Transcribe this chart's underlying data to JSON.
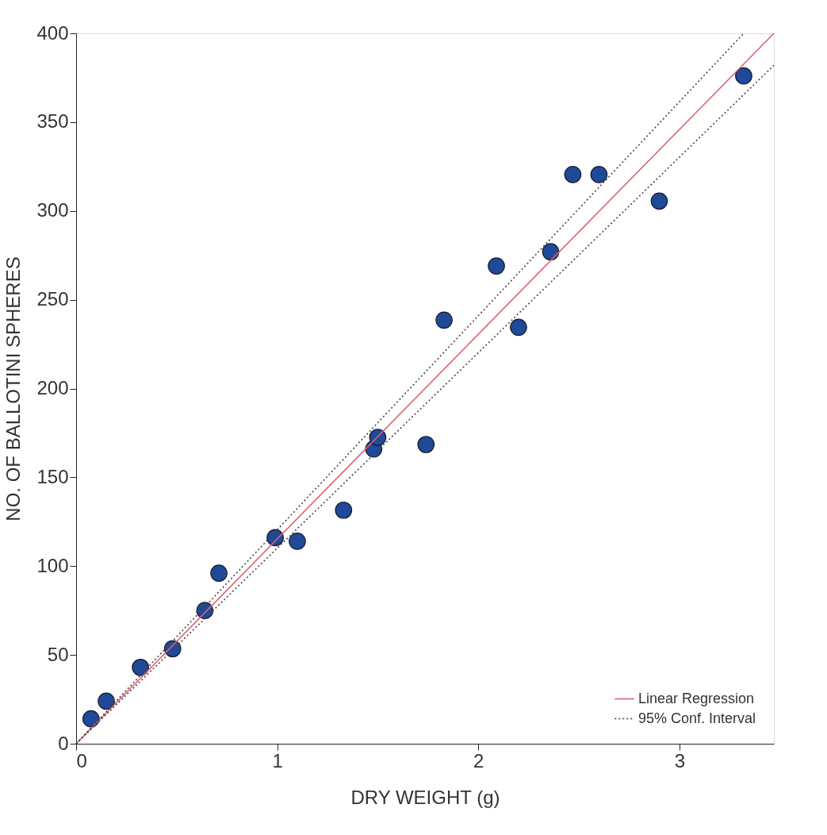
{
  "chart_data": {
    "type": "scatter",
    "xlabel": "DRY WEIGHT (g)",
    "ylabel": "NO. OF BALLOTINI SPHERES",
    "xlim": [
      0,
      3.47
    ],
    "ylim": [
      0,
      400
    ],
    "xticks": [
      0,
      1,
      2,
      3
    ],
    "yticks": [
      0,
      50,
      100,
      150,
      200,
      250,
      300,
      350,
      400
    ],
    "grid": false,
    "legend": "bottom right",
    "series": [
      {
        "marker": "circle",
        "color": "#1f4a9a",
        "x": [
          0.074,
          0.15,
          0.32,
          0.48,
          0.64,
          0.71,
          0.99,
          1.1,
          1.33,
          1.48,
          1.5,
          1.74,
          1.83,
          2.09,
          2.2,
          2.36,
          2.47,
          2.6,
          2.9,
          3.32
        ],
        "values": [
          14,
          24,
          43,
          53.5,
          75,
          96,
          116,
          114,
          131.5,
          166,
          172.5,
          168.5,
          238.5,
          269,
          234.5,
          277,
          320.5,
          320.5,
          305.5,
          376
        ]
      },
      {
        "type": "line",
        "name": "Linear Regression",
        "color": "#e0606e",
        "line_style": "solid",
        "x": [
          0,
          3.47
        ],
        "values": [
          0,
          400
        ]
      },
      {
        "type": "line",
        "name": "95% Conf. Interval",
        "color": "#444444",
        "line_style": "dotted",
        "x": [
          0,
          3.32
        ],
        "values": [
          0,
          400
        ]
      },
      {
        "type": "line",
        "color": "#444444",
        "line_style": "dotted",
        "x": [
          0,
          3.47
        ],
        "values": [
          0,
          382
        ]
      }
    ]
  }
}
